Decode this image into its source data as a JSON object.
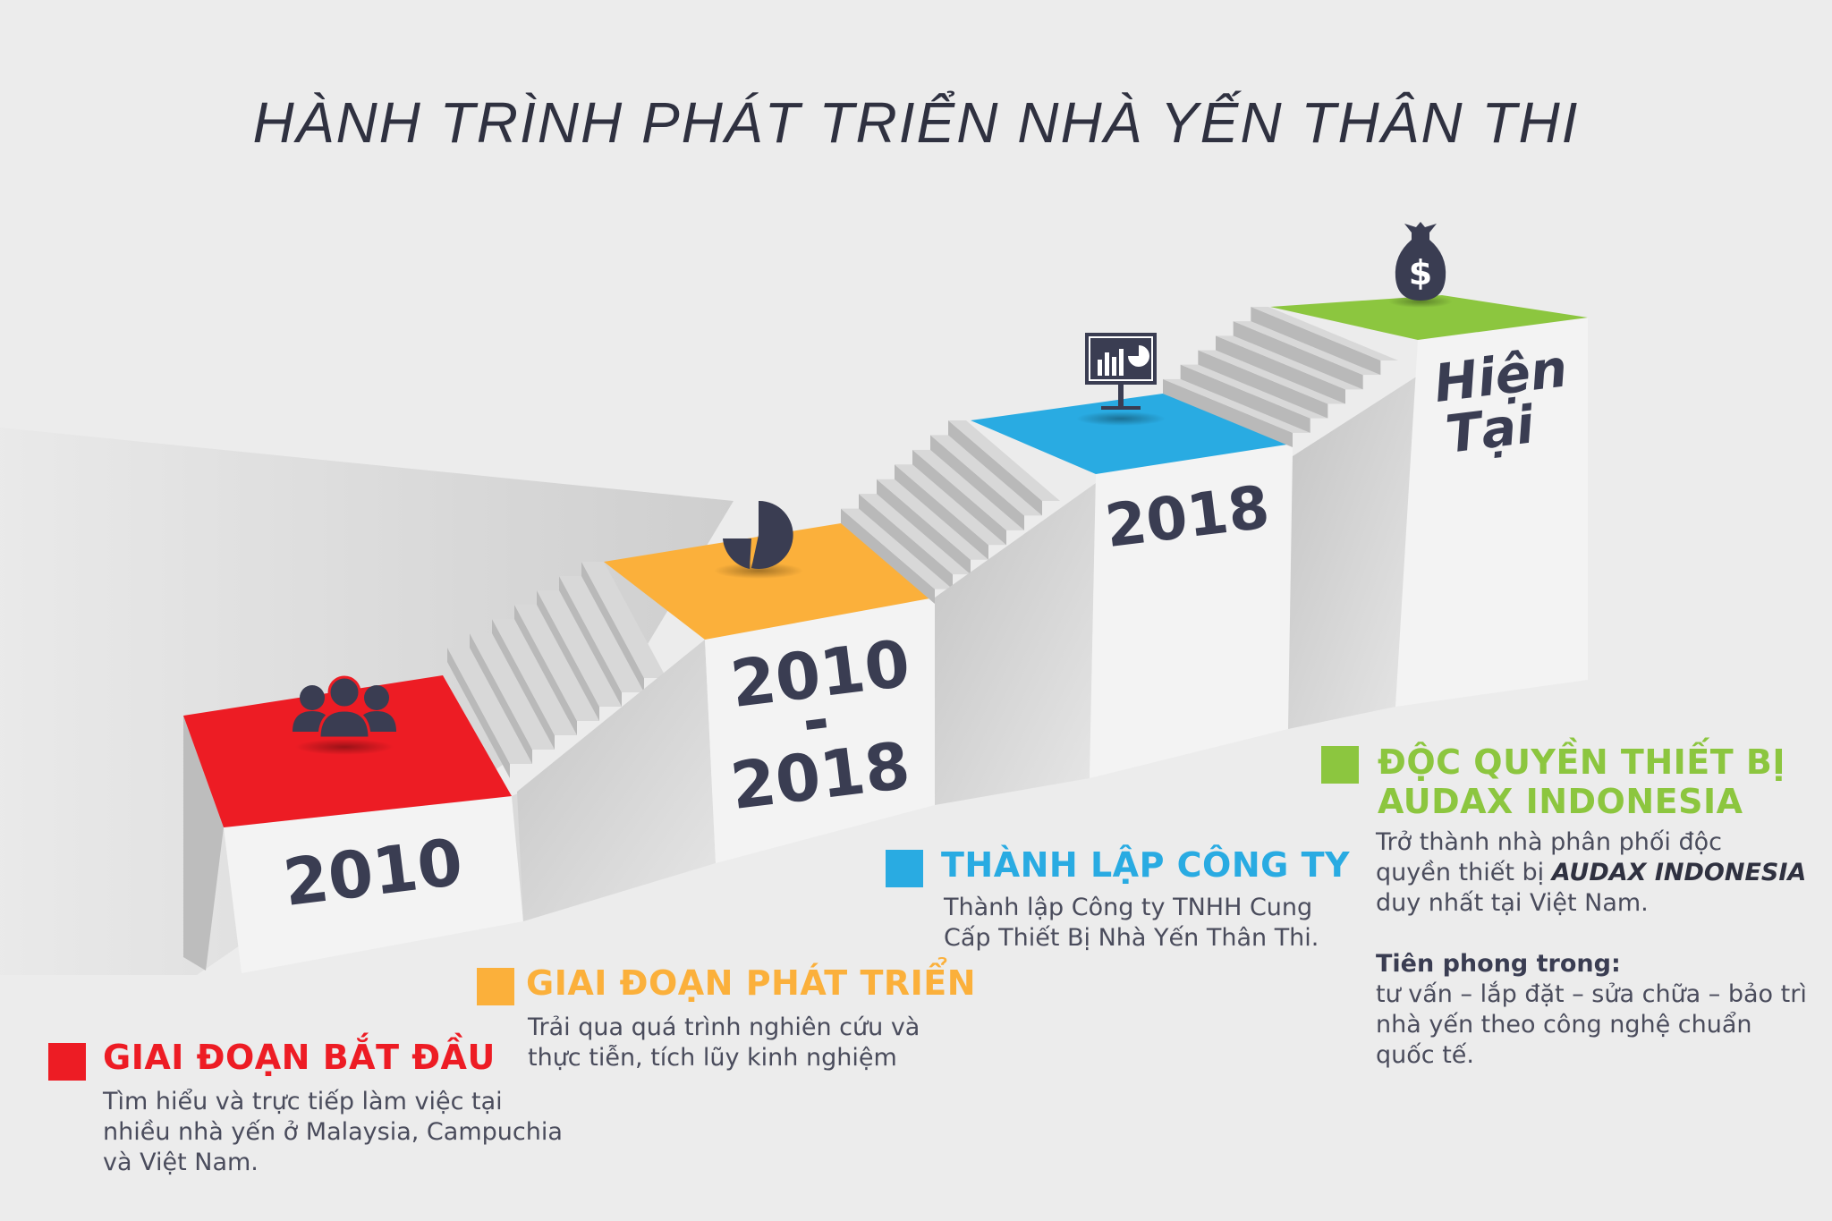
{
  "title": "HÀNH TRÌNH PHÁT TRIỂN NHÀ YẾN THÂN THI",
  "colors": {
    "red": "#ed1c24",
    "orange": "#fbb03b",
    "blue": "#29abe2",
    "green": "#8cc63f",
    "dark": "#3a3d52",
    "step_light": "#d8d8d8",
    "step_dark": "#b9b9b9"
  },
  "steps": [
    {
      "year": "2010",
      "color": "red",
      "icon": "people-icon"
    },
    {
      "year_line1": "2010",
      "year_dash": "-",
      "year_line2": "2018",
      "color": "orange",
      "icon": "pie-chart-icon"
    },
    {
      "year": "2018",
      "color": "blue",
      "icon": "presentation-board-icon"
    },
    {
      "year_line1": "Hiện",
      "year_line2": "Tại",
      "color": "green",
      "icon": "money-bag-icon"
    }
  ],
  "legend": {
    "start": {
      "title": "GIAI ĐOẠN BẮT ĐẦU",
      "lines": [
        "Tìm hiểu và trực tiếp làm việc tại",
        "nhiều nhà yến ở Malaysia, Campuchia",
        "và Việt Nam."
      ]
    },
    "develop": {
      "title": "GIAI ĐOẠN PHÁT TRIỂN",
      "lines": [
        "Trải qua quá trình nghiên cứu và",
        "thực tiễn, tích lũy kinh nghiệm"
      ]
    },
    "company": {
      "title": "THÀNH LẬP CÔNG TY",
      "lines": [
        "Thành lập Công ty TNHH Cung",
        "Cấp Thiết Bị Nhà Yến Thân Thi."
      ]
    },
    "exclusive": {
      "title_line1": "ĐỘC QUYỀN THIẾT BỊ",
      "title_line2": "AUDAX INDONESIA",
      "line1": "Trở thành nhà phân phối độc",
      "line2_prefix": "quyền thiết bị ",
      "line2_brand": "AUDAX INDONESIA",
      "line3": "duy nhất tại Việt Nam.",
      "sub_title": "Tiên phong trong:",
      "sub_lines": [
        "tư vấn – lắp đặt – sửa chữa – bảo trì",
        "nhà yến theo công nghệ chuẩn",
        "quốc tế."
      ]
    }
  }
}
